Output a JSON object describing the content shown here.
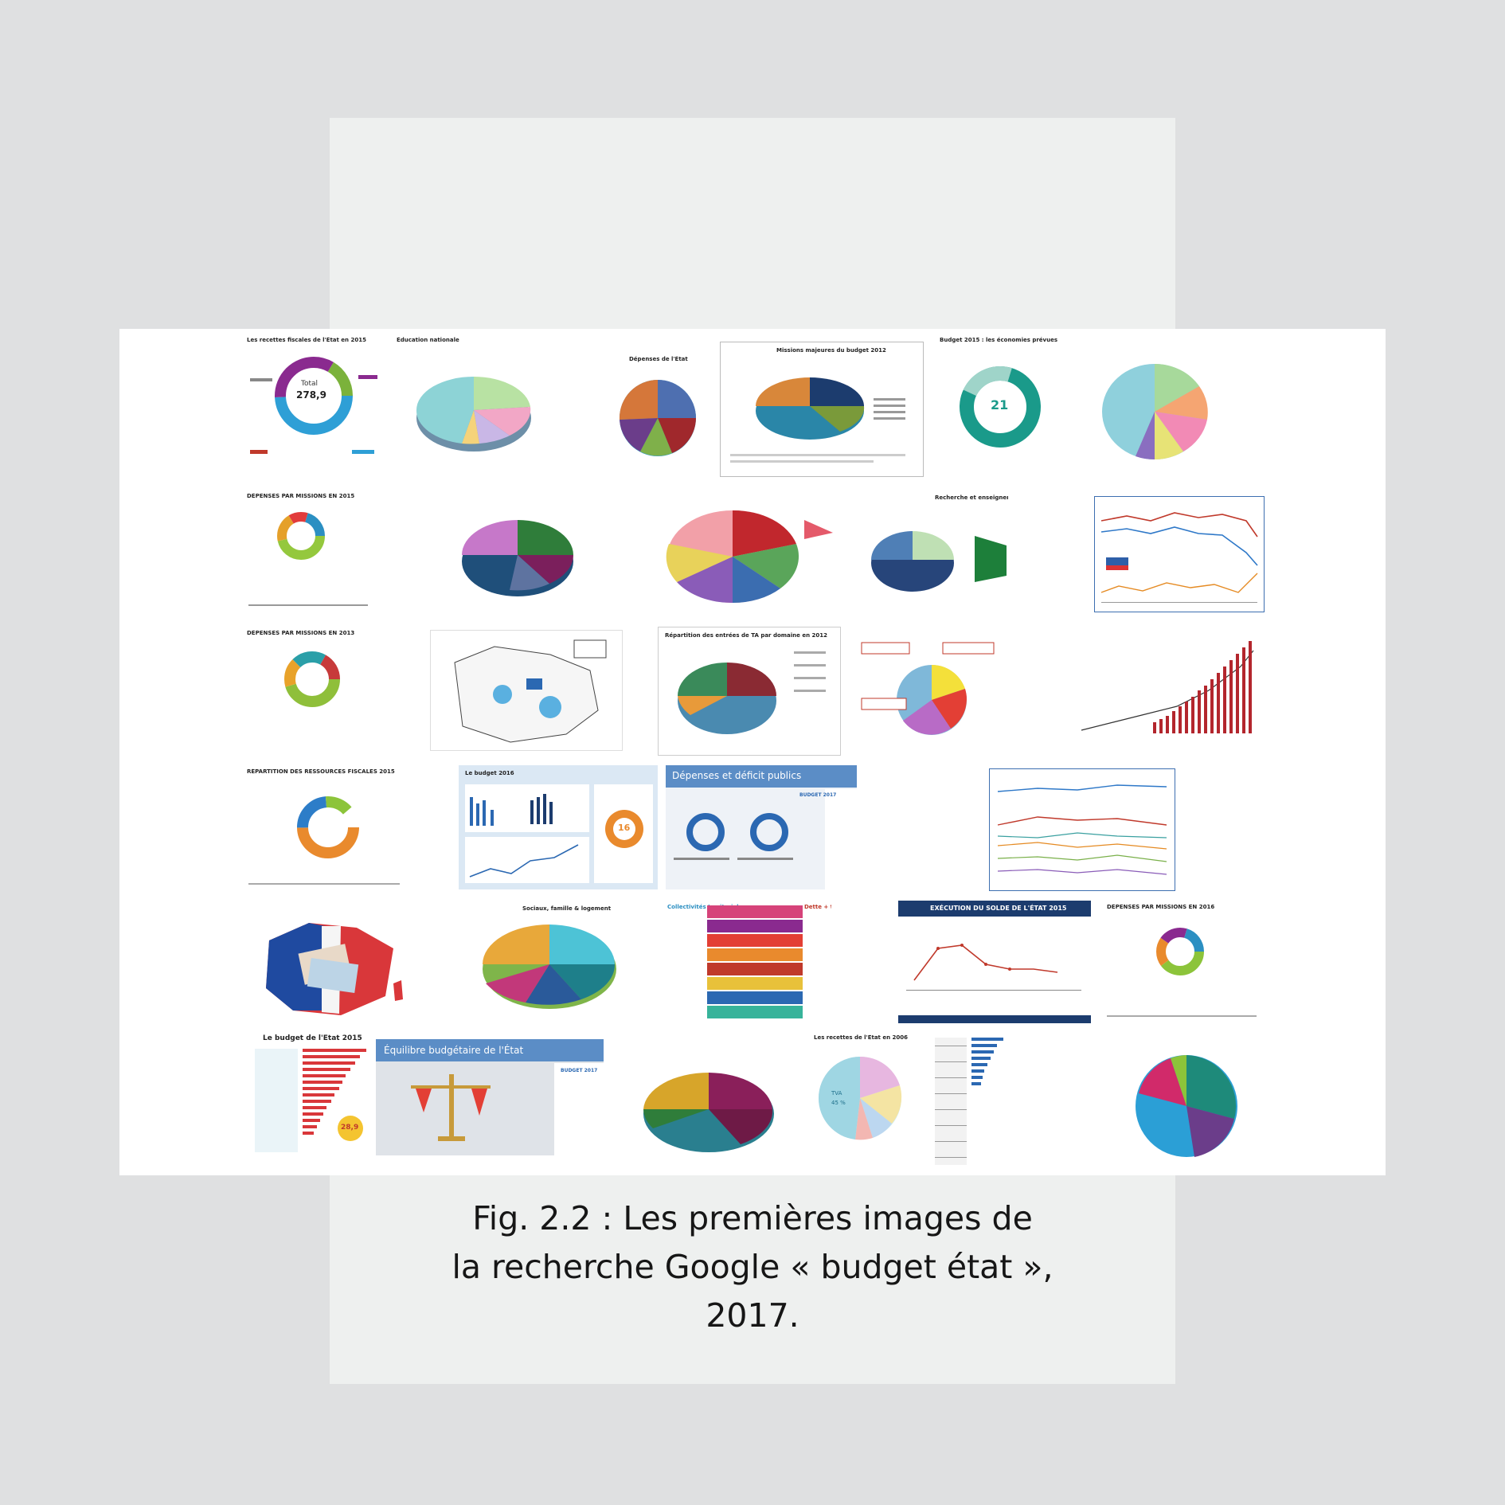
{
  "caption": {
    "line1": "Fig. 2.2 : Les premières images de",
    "line2": "la recherche Google « budget état »,",
    "line3": "2017."
  },
  "thumbnails": {
    "t01": "Les recettes fiscales de l'État en 2015",
    "t01_center": "278,9",
    "t01_center_label": "Total",
    "t02": "Éducation nationale",
    "t03": "Dépenses de l'État",
    "t04": "Missions majeures du budget 2012",
    "t05": "Budget 2015 : les économies prévues",
    "t05_center": "21",
    "t07": "DÉPENSES PAR MISSIONS EN 2015",
    "t10": "Recherche et enseignement supérieur",
    "t12": "DÉPENSES PAR MISSIONS EN 2013",
    "t14": "Répartition des entrées de TA par domaine en 2012",
    "t17": "RÉPARTITION DES RESSOURCES FISCALES 2015",
    "t18": "Le budget 2016",
    "t18_badge": "16",
    "t19_banner": "Dépenses et déficit publics",
    "t19_badge": "BUDGET 2017",
    "t22": "Sociaux, famille & logement",
    "t23": "Collectivités territoriales",
    "t23_right": "Dette + trésorerie",
    "t24": "EXÉCUTION DU SOLDE DE L'ÉTAT 2015",
    "t25": "DÉPENSES PAR MISSIONS EN 2016",
    "t26": "Le budget de l'État 2015",
    "t26_badge": "28,9",
    "t27_banner": "Équilibre budgétaire de l'État",
    "t27_badge": "BUDGET 2017",
    "t29": "Les recettes de l'État en 2006",
    "t29_a": "TVA",
    "t29_b": "45 %"
  },
  "colors": {
    "page_background": "#dfe0e1",
    "card_background": "#eef0ef",
    "collage_background": "#ffffff",
    "caption_text": "#161616"
  }
}
